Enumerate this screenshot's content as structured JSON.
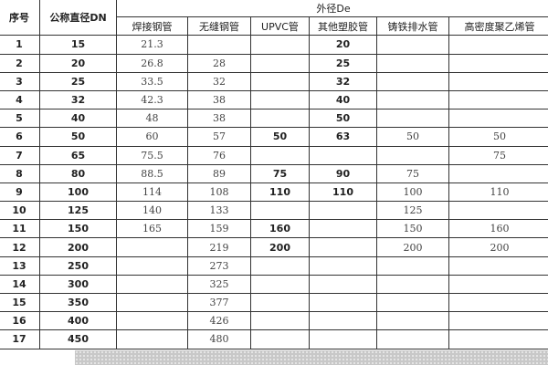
{
  "headers": {
    "index": "序号",
    "dn": "公称直径DN",
    "group": "外径De",
    "cols": [
      "焊接钢管",
      "无缝钢管",
      "UPVC管",
      "其他塑胶管",
      "铸铁排水管",
      "高密度聚乙烯管"
    ]
  },
  "rows": [
    [
      "1",
      "15",
      "21.3",
      "",
      "",
      "20",
      "",
      ""
    ],
    [
      "2",
      "20",
      "26.8",
      "28",
      "",
      "25",
      "",
      ""
    ],
    [
      "3",
      "25",
      "33.5",
      "32",
      "",
      "32",
      "",
      ""
    ],
    [
      "4",
      "32",
      "42.3",
      "38",
      "",
      "40",
      "",
      ""
    ],
    [
      "5",
      "40",
      "48",
      "38",
      "",
      "50",
      "",
      ""
    ],
    [
      "6",
      "50",
      "60",
      "57",
      "50",
      "63",
      "50",
      "50"
    ],
    [
      "7",
      "65",
      "75.5",
      "76",
      "",
      "",
      "",
      "75"
    ],
    [
      "8",
      "80",
      "88.5",
      "89",
      "75",
      "90",
      "75",
      ""
    ],
    [
      "9",
      "100",
      "114",
      "108",
      "110",
      "110",
      "100",
      "110"
    ],
    [
      "10",
      "125",
      "140",
      "133",
      "",
      "",
      "125",
      ""
    ],
    [
      "11",
      "150",
      "165",
      "159",
      "160",
      "",
      "150",
      "160"
    ],
    [
      "12",
      "200",
      "",
      "219",
      "200",
      "",
      "200",
      "200"
    ],
    [
      "13",
      "250",
      "",
      "273",
      "",
      "",
      "",
      ""
    ],
    [
      "14",
      "300",
      "",
      "325",
      "",
      "",
      "",
      ""
    ],
    [
      "15",
      "350",
      "",
      "377",
      "",
      "",
      "",
      ""
    ],
    [
      "16",
      "400",
      "",
      "426",
      "",
      "",
      "",
      ""
    ],
    [
      "17",
      "450",
      "",
      "480",
      "",
      "",
      "",
      ""
    ]
  ]
}
